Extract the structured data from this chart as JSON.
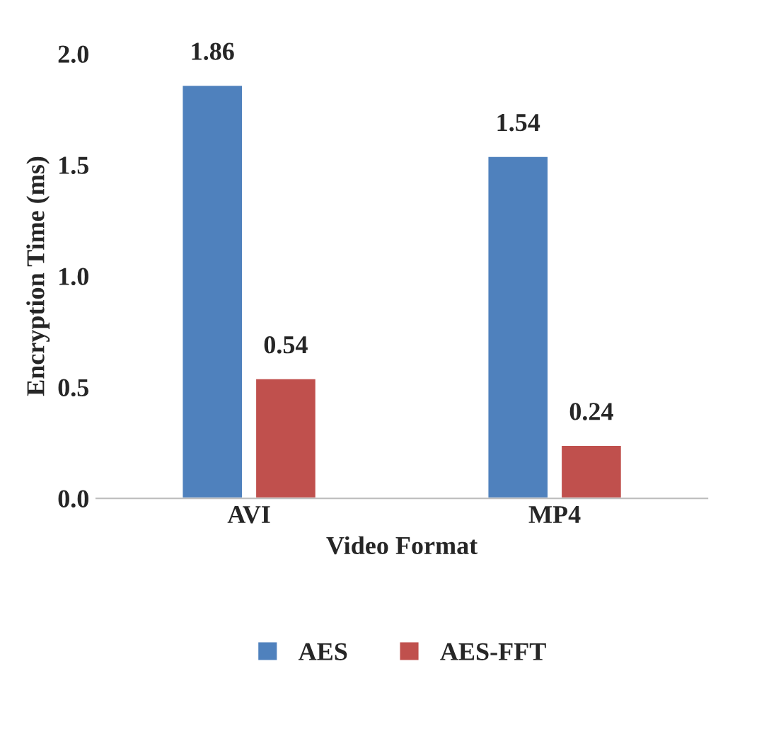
{
  "chart_data": {
    "type": "bar",
    "xlabel": "Video Format",
    "ylabel": "Encryption Time (ms)",
    "categories": [
      "AVI",
      "MP4"
    ],
    "series": [
      {
        "name": "AES",
        "color": "#4f81bd",
        "values": [
          1.86,
          1.54
        ]
      },
      {
        "name": "AES-FFT",
        "color": "#c0504d",
        "values": [
          0.54,
          0.24
        ]
      }
    ],
    "ylim": [
      0,
      2
    ],
    "yticks": [
      {
        "value": 0,
        "label": "0.0"
      },
      {
        "value": 0.5,
        "label": "0.5"
      },
      {
        "value": 1,
        "label": "1.0"
      },
      {
        "value": 1.5,
        "label": "1.5"
      },
      {
        "value": 2,
        "label": "2.0"
      }
    ],
    "data_labels": true,
    "grid": false,
    "legend": "bottom"
  }
}
